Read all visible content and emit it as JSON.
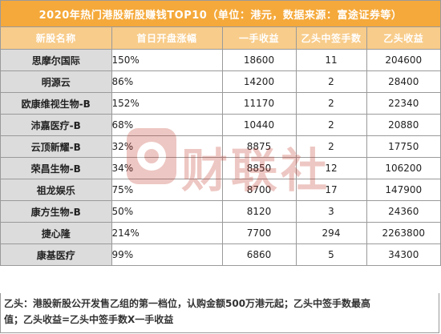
{
  "title": "2020年热门港股新股赚钱TOP10（单位：港元，数据来源：富途证券等）",
  "headers": [
    "新股名称",
    "首日开盘涨幅",
    "一手收益",
    "乙头中签手数",
    "乙头收益"
  ],
  "rows": [
    {
      "name": "思摩尔国际",
      "pct": "150%",
      "lot": "18600",
      "hands": "11",
      "gain": "204600"
    },
    {
      "name": "明源云",
      "pct": "86%",
      "lot": "14200",
      "hands": "2",
      "gain": "28400"
    },
    {
      "name": "欧康维视生物-B",
      "pct": "152%",
      "lot": "11170",
      "hands": "2",
      "gain": "22340"
    },
    {
      "name": "沛嘉医疗-B",
      "pct": "68%",
      "lot": "10440",
      "hands": "2",
      "gain": "20880"
    },
    {
      "name": "云顶新耀-B",
      "pct": "32%",
      "lot": "8875",
      "hands": "2",
      "gain": "17750"
    },
    {
      "name": "荣昌生物-B",
      "pct": "34%",
      "lot": "8850",
      "hands": "12",
      "gain": "106200"
    },
    {
      "name": "祖龙娱乐",
      "pct": "75%",
      "lot": "8700",
      "hands": "17",
      "gain": "147900"
    },
    {
      "name": "康方生物-B",
      "pct": "50%",
      "lot": "8120",
      "hands": "3",
      "gain": "24360"
    },
    {
      "name": "捷心隆",
      "pct": "214%",
      "lot": "7700",
      "hands": "294",
      "gain": "2263800"
    },
    {
      "name": "康基医疗",
      "pct": "99%",
      "lot": "6860",
      "hands": "5",
      "gain": "34300"
    }
  ],
  "note_line1": "乙头：港股新股公开发售乙组的第一档位，认购金额500万港元起；乙头中签手数最高",
  "note_line2": "值；乙头收益=乙头中签手数X一手收益",
  "watermark": {
    "text": "财联社",
    "color": "#c0392b"
  }
}
